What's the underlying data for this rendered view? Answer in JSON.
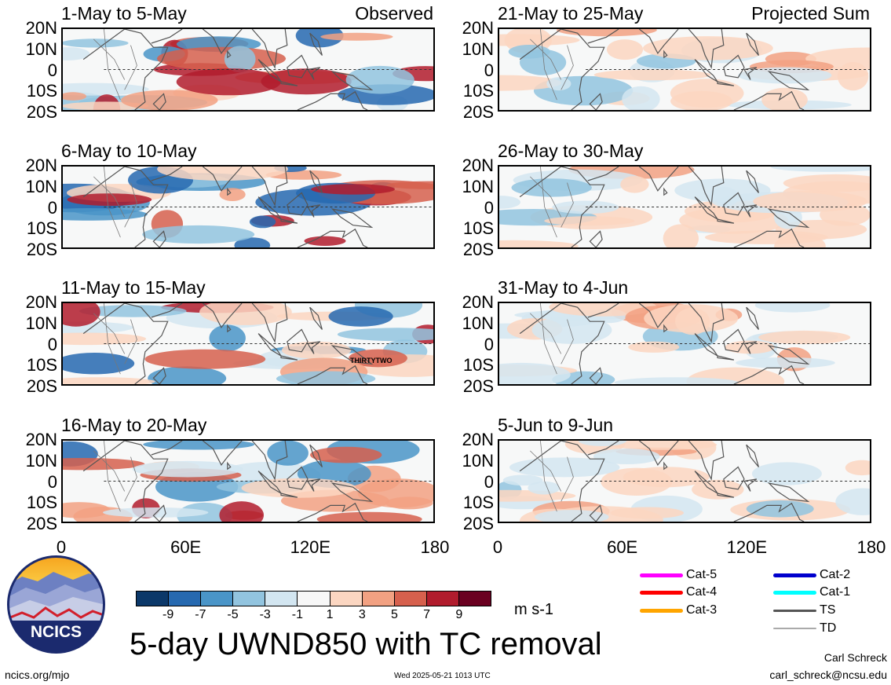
{
  "panels": [
    {
      "title": "1-May to 5-May",
      "tag": "Observed",
      "col": 0,
      "row": 0
    },
    {
      "title": "6-May to 10-May",
      "tag": "",
      "col": 0,
      "row": 1
    },
    {
      "title": "11-May to 15-May",
      "tag": "",
      "col": 0,
      "row": 2,
      "annotation": "THIRTYTWO"
    },
    {
      "title": "16-May to 20-May",
      "tag": "",
      "col": 0,
      "row": 3
    },
    {
      "title": "21-May to 25-May",
      "tag": "Projected Sum",
      "col": 1,
      "row": 0
    },
    {
      "title": "26-May to 30-May",
      "tag": "",
      "col": 1,
      "row": 1
    },
    {
      "title": "31-May to 4-Jun",
      "tag": "",
      "col": 1,
      "row": 2
    },
    {
      "title": "5-Jun to 9-Jun",
      "tag": "",
      "col": 1,
      "row": 3
    }
  ],
  "lat_labels": [
    "20N",
    "10N",
    "0",
    "10S",
    "20S"
  ],
  "lon_labels": [
    "0",
    "60E",
    "120E",
    "180"
  ],
  "colorbar": {
    "ticks": [
      "-9",
      "-7",
      "-5",
      "-3",
      "-1",
      "1",
      "3",
      "5",
      "7",
      "9"
    ],
    "colors": [
      "#0b3869",
      "#2669b0",
      "#4a95c8",
      "#92c4df",
      "#d3e6f1",
      "#f7f7f7",
      "#fbd6c1",
      "#f2a182",
      "#d6604d",
      "#b11c2d",
      "#6a0020"
    ],
    "units": "m s-1"
  },
  "legend": [
    {
      "label": "Cat-5",
      "color": "#ff00ff"
    },
    {
      "label": "Cat-4",
      "color": "#ff0000"
    },
    {
      "label": "Cat-3",
      "color": "#ffa500"
    },
    {
      "label": "Cat-2",
      "color": "#0000cd"
    },
    {
      "label": "Cat-1",
      "color": "#00ffff"
    },
    {
      "label": "TS",
      "color": "#555555"
    },
    {
      "label": "TD",
      "color": "#aaaaaa"
    }
  ],
  "logo_text": "NCICS",
  "main_title": "5-day UWND850 with TC removal",
  "footer": {
    "left": "ncics.org/mjo",
    "center": "Wed 2025-05-21 1013 UTC",
    "author": "Carl Schreck",
    "email": "carl_schreck@ncsu.edu"
  }
}
